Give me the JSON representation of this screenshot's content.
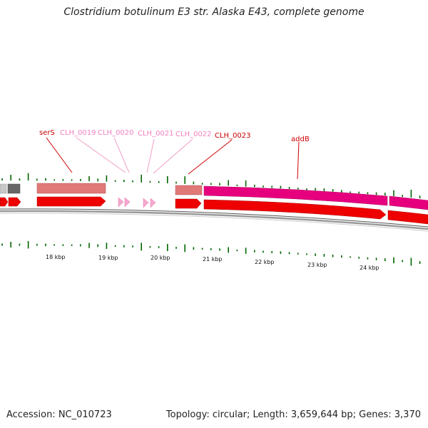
{
  "title": "Clostridium botulinum E3 str. Alaska E43, complete genome",
  "footer": {
    "accession": "Accession: NC_010723",
    "summary": "Topology: circular; Length: 3,659,644 bp; Genes: 3,370"
  },
  "colors": {
    "dark_red": "#cc0000",
    "pink": "#f080c0",
    "gene_light_red": "#e07070",
    "gene_red": "#ee0000",
    "gene_magenta": "#e6007e",
    "gene_gray": "#b0b0b0",
    "gene_dark_gray": "#666666",
    "tick_green": "#006600",
    "backbone": "#888888"
  },
  "gene_labels": [
    {
      "text": "serS",
      "color": "dark_red"
    },
    {
      "text": "CLH_0019",
      "color": "pink"
    },
    {
      "text": "CLH_0020",
      "color": "pink"
    },
    {
      "text": "CLH_0021",
      "color": "pink"
    },
    {
      "text": "CLH_0022",
      "color": "pink"
    },
    {
      "text": "CLH_0023",
      "color": "dark_red"
    },
    {
      "text": "addB",
      "color": "dark_red"
    }
  ],
  "scale_labels": [
    "18 kbp",
    "19 kbp",
    "20 kbp",
    "21 kbp",
    "22 kbp",
    "23 kbp",
    "24 kbp"
  ]
}
